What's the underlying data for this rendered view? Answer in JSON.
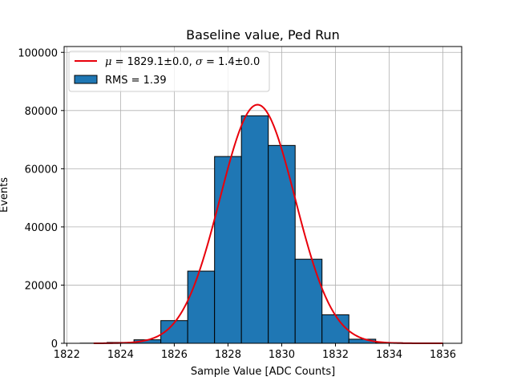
{
  "chart_data": {
    "type": "bar",
    "title": "Baseline value, Ped Run",
    "xlabel": "Sample Value [ADC Counts]",
    "ylabel": "Events",
    "xlim": [
      1821.9,
      1836.7
    ],
    "ylim": [
      0,
      102000
    ],
    "x_ticks": [
      1822,
      1824,
      1826,
      1828,
      1830,
      1832,
      1834,
      1836
    ],
    "y_ticks": [
      0,
      20000,
      40000,
      60000,
      80000,
      100000
    ],
    "grid": true,
    "legend_position": "top-left",
    "histogram": {
      "name": "RMS = 1.39",
      "color": "#1f77b4",
      "edge_color": "#000000",
      "bin_edges": [
        1822.5,
        1823.5,
        1824.5,
        1825.5,
        1826.5,
        1827.5,
        1828.5,
        1829.5,
        1830.5,
        1831.5,
        1832.5,
        1833.5,
        1834.5,
        1835.5
      ],
      "counts": [
        50,
        300,
        1200,
        7800,
        24800,
        64200,
        78200,
        68000,
        28900,
        9800,
        1400,
        200,
        20
      ]
    },
    "fit": {
      "legend_mu": "μ",
      "legend_eq1": " = 1829.1±0.0, ",
      "legend_sigma": "σ",
      "legend_eq2": " = 1.4±0.0",
      "color": "#e8000b",
      "mean": 1829.1,
      "sigma": 1.4,
      "amplitude": 82000,
      "x_range": [
        1823,
        1836
      ]
    }
  }
}
